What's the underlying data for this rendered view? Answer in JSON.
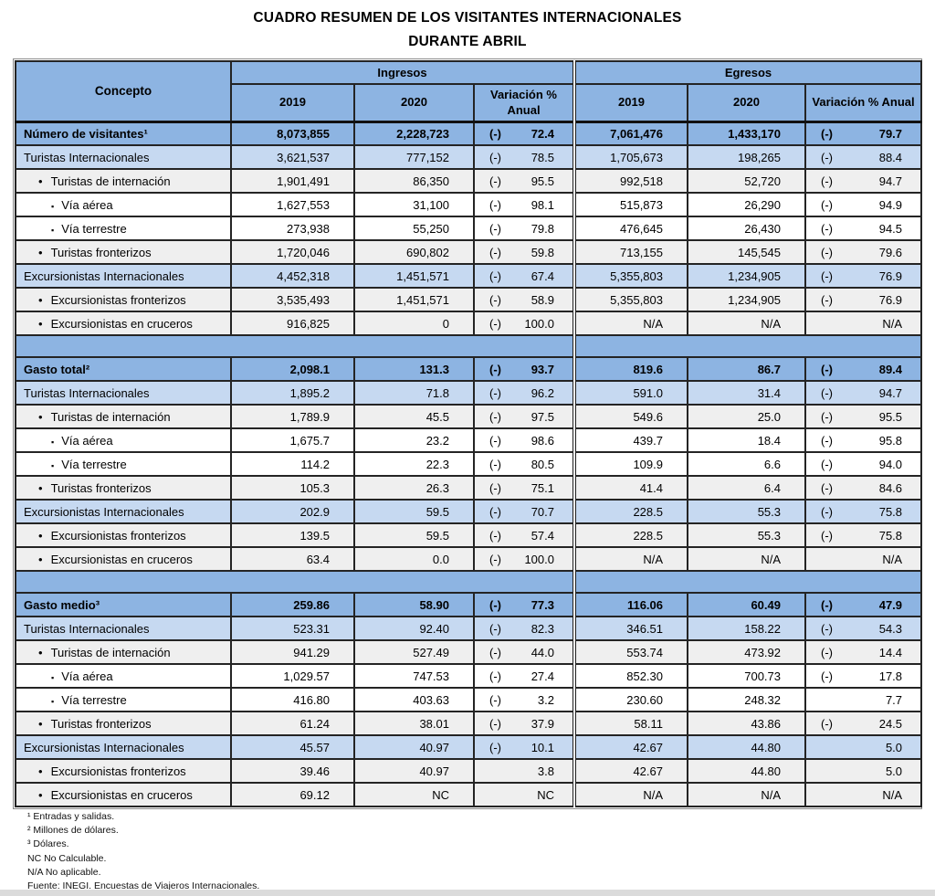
{
  "title": {
    "line1": "CUADRO RESUMEN DE LOS VISITANTES INTERNACIONALES",
    "line2": "DURANTE ABRIL"
  },
  "colors": {
    "header_blue": "#8DB4E2",
    "light_blue": "#C6D9F1",
    "row_gray": "#EFEFEF",
    "border_dark": "#1F1F1F"
  },
  "table": {
    "concept_header": "Concepto",
    "group_headers": [
      "Ingresos",
      "Egresos"
    ],
    "sub_headers": [
      "2019",
      "2020",
      "Variación % Anual",
      "2019",
      "2020",
      "Variación % Anual"
    ],
    "sections": [
      {
        "name": "Número de visitantes",
        "rows": [
          {
            "label": "Número de visitantes¹",
            "level": 0,
            "cells": [
              "8,073,855",
              "2,228,723",
              "(-) 72.4",
              "7,061,476",
              "1,433,170",
              "(-) 79.7"
            ]
          },
          {
            "label": "Turistas Internacionales",
            "level": 1,
            "cells": [
              "3,621,537",
              "777,152",
              "(-) 78.5",
              "1,705,673",
              "198,265",
              "(-) 88.4"
            ]
          },
          {
            "label": "Turistas de internación",
            "level": 2,
            "cells": [
              "1,901,491",
              "86,350",
              "(-) 95.5",
              "992,518",
              "52,720",
              "(-) 94.7"
            ]
          },
          {
            "label": "Vía aérea",
            "level": 3,
            "cells": [
              "1,627,553",
              "31,100",
              "(-) 98.1",
              "515,873",
              "26,290",
              "(-) 94.9"
            ]
          },
          {
            "label": "Vía terrestre",
            "level": 3,
            "cells": [
              "273,938",
              "55,250",
              "(-) 79.8",
              "476,645",
              "26,430",
              "(-) 94.5"
            ]
          },
          {
            "label": "Turistas fronterizos",
            "level": 2,
            "cells": [
              "1,720,046",
              "690,802",
              "(-) 59.8",
              "713,155",
              "145,545",
              "(-) 79.6"
            ]
          },
          {
            "label": "Excursionistas Internacionales",
            "level": 1,
            "cells": [
              "4,452,318",
              "1,451,571",
              "(-) 67.4",
              "5,355,803",
              "1,234,905",
              "(-) 76.9"
            ]
          },
          {
            "label": "Excursionistas fronterizos",
            "level": 2,
            "cells": [
              "3,535,493",
              "1,451,571",
              "(-) 58.9",
              "5,355,803",
              "1,234,905",
              "(-) 76.9"
            ]
          },
          {
            "label": "Excursionistas en cruceros",
            "level": 2,
            "cells": [
              "916,825",
              "0",
              "(-) 100.0",
              "N/A",
              "N/A",
              "N/A"
            ]
          }
        ]
      },
      {
        "name": "Gasto total",
        "rows": [
          {
            "label": "Gasto total²",
            "level": 0,
            "cells": [
              "2,098.1",
              "131.3",
              "(-) 93.7",
              "819.6",
              "86.7",
              "(-) 89.4"
            ]
          },
          {
            "label": "Turistas Internacionales",
            "level": 1,
            "cells": [
              "1,895.2",
              "71.8",
              "(-) 96.2",
              "591.0",
              "31.4",
              "(-) 94.7"
            ]
          },
          {
            "label": "Turistas de internación",
            "level": 2,
            "cells": [
              "1,789.9",
              "45.5",
              "(-) 97.5",
              "549.6",
              "25.0",
              "(-) 95.5"
            ]
          },
          {
            "label": "Vía aérea",
            "level": 3,
            "cells": [
              "1,675.7",
              "23.2",
              "(-) 98.6",
              "439.7",
              "18.4",
              "(-) 95.8"
            ]
          },
          {
            "label": "Vía terrestre",
            "level": 3,
            "cells": [
              "114.2",
              "22.3",
              "(-) 80.5",
              "109.9",
              "6.6",
              "(-) 94.0"
            ]
          },
          {
            "label": "Turistas fronterizos",
            "level": 2,
            "cells": [
              "105.3",
              "26.3",
              "(-) 75.1",
              "41.4",
              "6.4",
              "(-) 84.6"
            ]
          },
          {
            "label": "Excursionistas Internacionales",
            "level": 1,
            "cells": [
              "202.9",
              "59.5",
              "(-) 70.7",
              "228.5",
              "55.3",
              "(-) 75.8"
            ]
          },
          {
            "label": "Excursionistas fronterizos",
            "level": 2,
            "cells": [
              "139.5",
              "59.5",
              "(-) 57.4",
              "228.5",
              "55.3",
              "(-) 75.8"
            ]
          },
          {
            "label": "Excursionistas en cruceros",
            "level": 2,
            "cells": [
              "63.4",
              "0.0",
              "(-) 100.0",
              "N/A",
              "N/A",
              "N/A"
            ]
          }
        ]
      },
      {
        "name": "Gasto medio",
        "rows": [
          {
            "label": "Gasto medio³",
            "level": 0,
            "cells": [
              "259.86",
              "58.90",
              "(-) 77.3",
              "116.06",
              "60.49",
              "(-) 47.9"
            ]
          },
          {
            "label": "Turistas Internacionales",
            "level": 1,
            "cells": [
              "523.31",
              "92.40",
              "(-) 82.3",
              "346.51",
              "158.22",
              "(-) 54.3"
            ]
          },
          {
            "label": "Turistas de internación",
            "level": 2,
            "cells": [
              "941.29",
              "527.49",
              "(-) 44.0",
              "553.74",
              "473.92",
              "(-) 14.4"
            ]
          },
          {
            "label": "Vía aérea",
            "level": 3,
            "cells": [
              "1,029.57",
              "747.53",
              "(-) 27.4",
              "852.30",
              "700.73",
              "(-) 17.8"
            ]
          },
          {
            "label": "Vía terrestre",
            "level": 3,
            "cells": [
              "416.80",
              "403.63",
              "(-) 3.2",
              "230.60",
              "248.32",
              "7.7"
            ]
          },
          {
            "label": "Turistas fronterizos",
            "level": 2,
            "cells": [
              "61.24",
              "38.01",
              "(-) 37.9",
              "58.11",
              "43.86",
              "(-) 24.5"
            ]
          },
          {
            "label": "Excursionistas Internacionales",
            "level": 1,
            "cells": [
              "45.57",
              "40.97",
              "(-) 10.1",
              "42.67",
              "44.80",
              "5.0"
            ]
          },
          {
            "label": "Excursionistas fronterizos",
            "level": 2,
            "cells": [
              "39.46",
              "40.97",
              "3.8",
              "42.67",
              "44.80",
              "5.0"
            ]
          },
          {
            "label": "Excursionistas en cruceros",
            "level": 2,
            "cells": [
              "69.12",
              "NC",
              "NC",
              "N/A",
              "N/A",
              "N/A"
            ]
          }
        ]
      }
    ]
  },
  "footnotes": [
    "¹ Entradas y salidas.",
    "² Millones de dólares.",
    "³ Dólares.",
    "NC No Calculable.",
    "N/A No aplicable.",
    "Fuente: INEGI. Encuestas de Viajeros Internacionales."
  ]
}
